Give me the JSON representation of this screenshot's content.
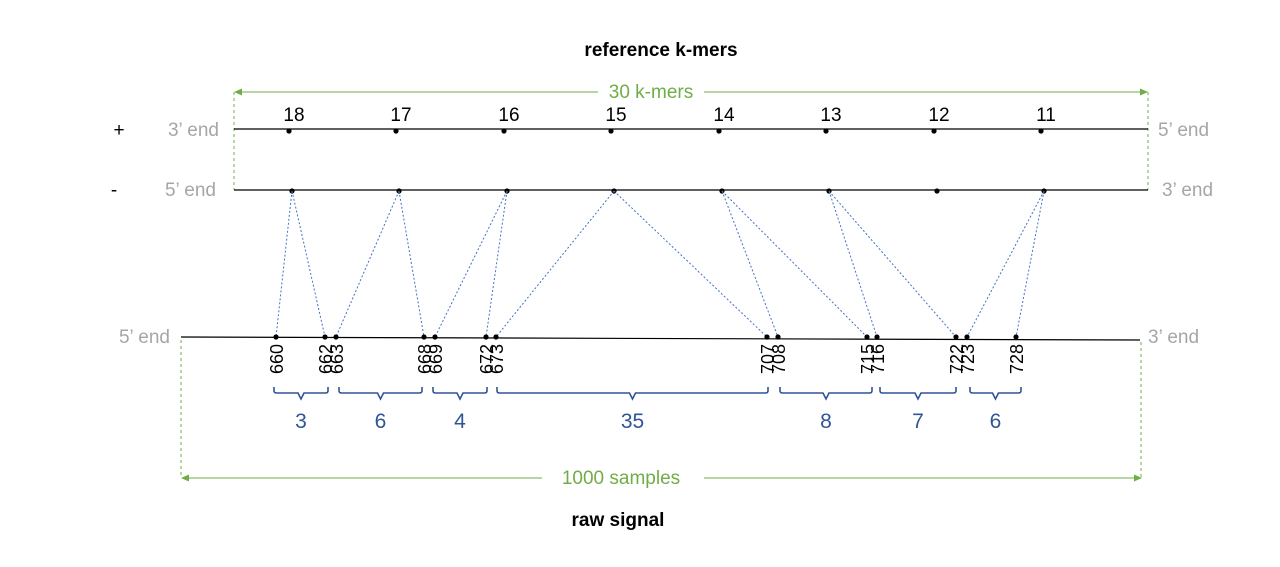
{
  "title_top": "reference k-mers",
  "title_bottom": "raw signal",
  "plus_strand": {
    "sign": "+",
    "left_end": "3’ end",
    "right_end": "5’ end"
  },
  "minus_strand": {
    "sign": "-",
    "left_end": "5’ end",
    "right_end": "3’ end"
  },
  "signal_strand": {
    "left_end": "5’ end",
    "right_end": "3’ end"
  },
  "kmer_span_label": "30 k-mers",
  "sample_span_label": "1000 samples",
  "kmers": [
    "18",
    "17",
    "16",
    "15",
    "14",
    "13",
    "12",
    "11"
  ],
  "samples": [
    "660",
    "662",
    "663",
    "668",
    "669",
    "672",
    "673",
    "707",
    "708",
    "715",
    "716",
    "722",
    "723",
    "728"
  ],
  "mappings": [
    {
      "kmer": "18",
      "from": "660",
      "to": "662"
    },
    {
      "kmer": "17",
      "from": "663",
      "to": "668"
    },
    {
      "kmer": "16",
      "from": "669",
      "to": "672"
    },
    {
      "kmer": "15",
      "from": "673",
      "to": "707"
    },
    {
      "kmer": "14",
      "from": "708",
      "to": "715"
    },
    {
      "kmer": "13",
      "from": "716",
      "to": "722"
    },
    {
      "kmer": "11",
      "from": "723",
      "to": "728"
    }
  ],
  "spans": [
    "3",
    "6",
    "4",
    "35",
    "8",
    "7",
    "6"
  ],
  "colors": {
    "axis": "#000000",
    "end_label": "#a6a6a6",
    "green": "#70ad47",
    "mapping": "#4472c4",
    "span": "#2f5597"
  }
}
